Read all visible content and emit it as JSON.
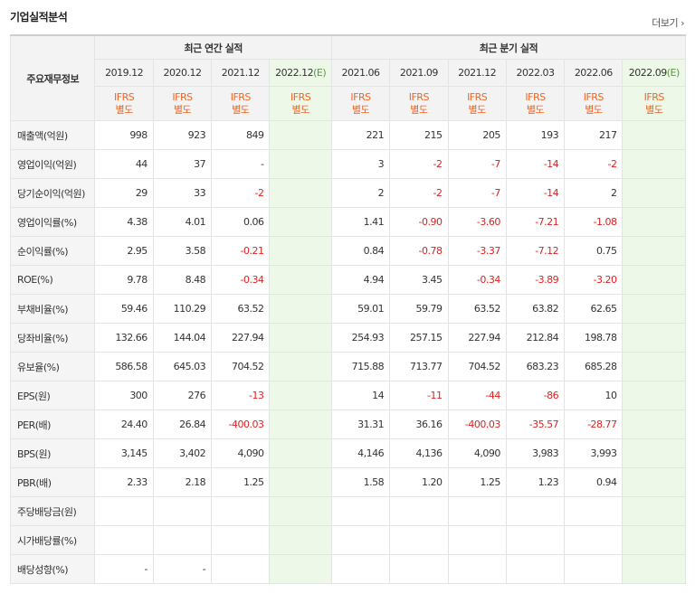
{
  "title": "기업실적분석",
  "more_label": "더보기",
  "more_icon": "chevron-right-icon",
  "header": {
    "row_header": "주요재무정보",
    "annual_label": "최근 연간 실적",
    "quarter_label": "최근 분기 실적",
    "annual_dates": [
      "2019.12",
      "2020.12",
      "2021.12",
      "2022.12"
    ],
    "annual_est_suffix": "(E)",
    "quarter_dates": [
      "2021.06",
      "2021.09",
      "2021.12",
      "2022.03",
      "2022.06",
      "2022.09"
    ],
    "quarter_est_suffix": "(E)",
    "ifrs_top": "IFRS",
    "ifrs_bottom": "별도"
  },
  "rows": [
    {
      "label": "매출액(억원)",
      "annual": [
        "998",
        "923",
        "849",
        ""
      ],
      "quarter": [
        "221",
        "215",
        "205",
        "193",
        "217",
        ""
      ]
    },
    {
      "label": "영업이익(억원)",
      "annual": [
        "44",
        "37",
        "-",
        ""
      ],
      "quarter": [
        "3",
        "-2",
        "-7",
        "-14",
        "-2",
        ""
      ]
    },
    {
      "label": "당기순이익(억원)",
      "annual": [
        "29",
        "33",
        "-2",
        ""
      ],
      "quarter": [
        "2",
        "-2",
        "-7",
        "-14",
        "2",
        ""
      ]
    },
    {
      "label": "영업이익률(%)",
      "annual": [
        "4.38",
        "4.01",
        "0.06",
        ""
      ],
      "quarter": [
        "1.41",
        "-0.90",
        "-3.60",
        "-7.21",
        "-1.08",
        ""
      ]
    },
    {
      "label": "순이익률(%)",
      "annual": [
        "2.95",
        "3.58",
        "-0.21",
        ""
      ],
      "quarter": [
        "0.84",
        "-0.78",
        "-3.37",
        "-7.12",
        "0.75",
        ""
      ]
    },
    {
      "label": "ROE(%)",
      "annual": [
        "9.78",
        "8.48",
        "-0.34",
        ""
      ],
      "quarter": [
        "4.94",
        "3.45",
        "-0.34",
        "-3.89",
        "-3.20",
        ""
      ]
    },
    {
      "label": "부채비율(%)",
      "annual": [
        "59.46",
        "110.29",
        "63.52",
        ""
      ],
      "quarter": [
        "59.01",
        "59.79",
        "63.52",
        "63.82",
        "62.65",
        ""
      ]
    },
    {
      "label": "당좌비율(%)",
      "annual": [
        "132.66",
        "144.04",
        "227.94",
        ""
      ],
      "quarter": [
        "254.93",
        "257.15",
        "227.94",
        "212.84",
        "198.78",
        ""
      ]
    },
    {
      "label": "유보율(%)",
      "annual": [
        "586.58",
        "645.03",
        "704.52",
        ""
      ],
      "quarter": [
        "715.88",
        "713.77",
        "704.52",
        "683.23",
        "685.28",
        ""
      ]
    },
    {
      "label": "EPS(원)",
      "annual": [
        "300",
        "276",
        "-13",
        ""
      ],
      "quarter": [
        "14",
        "-11",
        "-44",
        "-86",
        "10",
        ""
      ]
    },
    {
      "label": "PER(배)",
      "annual": [
        "24.40",
        "26.84",
        "-400.03",
        ""
      ],
      "quarter": [
        "31.31",
        "36.16",
        "-400.03",
        "-35.57",
        "-28.77",
        ""
      ]
    },
    {
      "label": "BPS(원)",
      "annual": [
        "3,145",
        "3,402",
        "4,090",
        ""
      ],
      "quarter": [
        "4,146",
        "4,136",
        "4,090",
        "3,983",
        "3,993",
        ""
      ]
    },
    {
      "label": "PBR(배)",
      "annual": [
        "2.33",
        "2.18",
        "1.25",
        ""
      ],
      "quarter": [
        "1.58",
        "1.20",
        "1.25",
        "1.23",
        "0.94",
        ""
      ]
    },
    {
      "label": "주당배당금(원)",
      "annual": [
        "",
        "",
        "",
        ""
      ],
      "quarter": [
        "",
        "",
        "",
        "",
        "",
        ""
      ]
    },
    {
      "label": "시가배당률(%)",
      "annual": [
        "",
        "",
        "",
        ""
      ],
      "quarter": [
        "",
        "",
        "",
        "",
        "",
        ""
      ]
    },
    {
      "label": "배당성향(%)",
      "annual": [
        "-",
        "-",
        "",
        ""
      ],
      "quarter": [
        "",
        "",
        "",
        "",
        "",
        ""
      ]
    }
  ],
  "colors": {
    "ifrs": "#f26522",
    "negative": "#e02020",
    "estimate_bg": "#eef8e9",
    "estimate_tag": "#5a9a3c",
    "header_bg": "#f3f3f3"
  }
}
